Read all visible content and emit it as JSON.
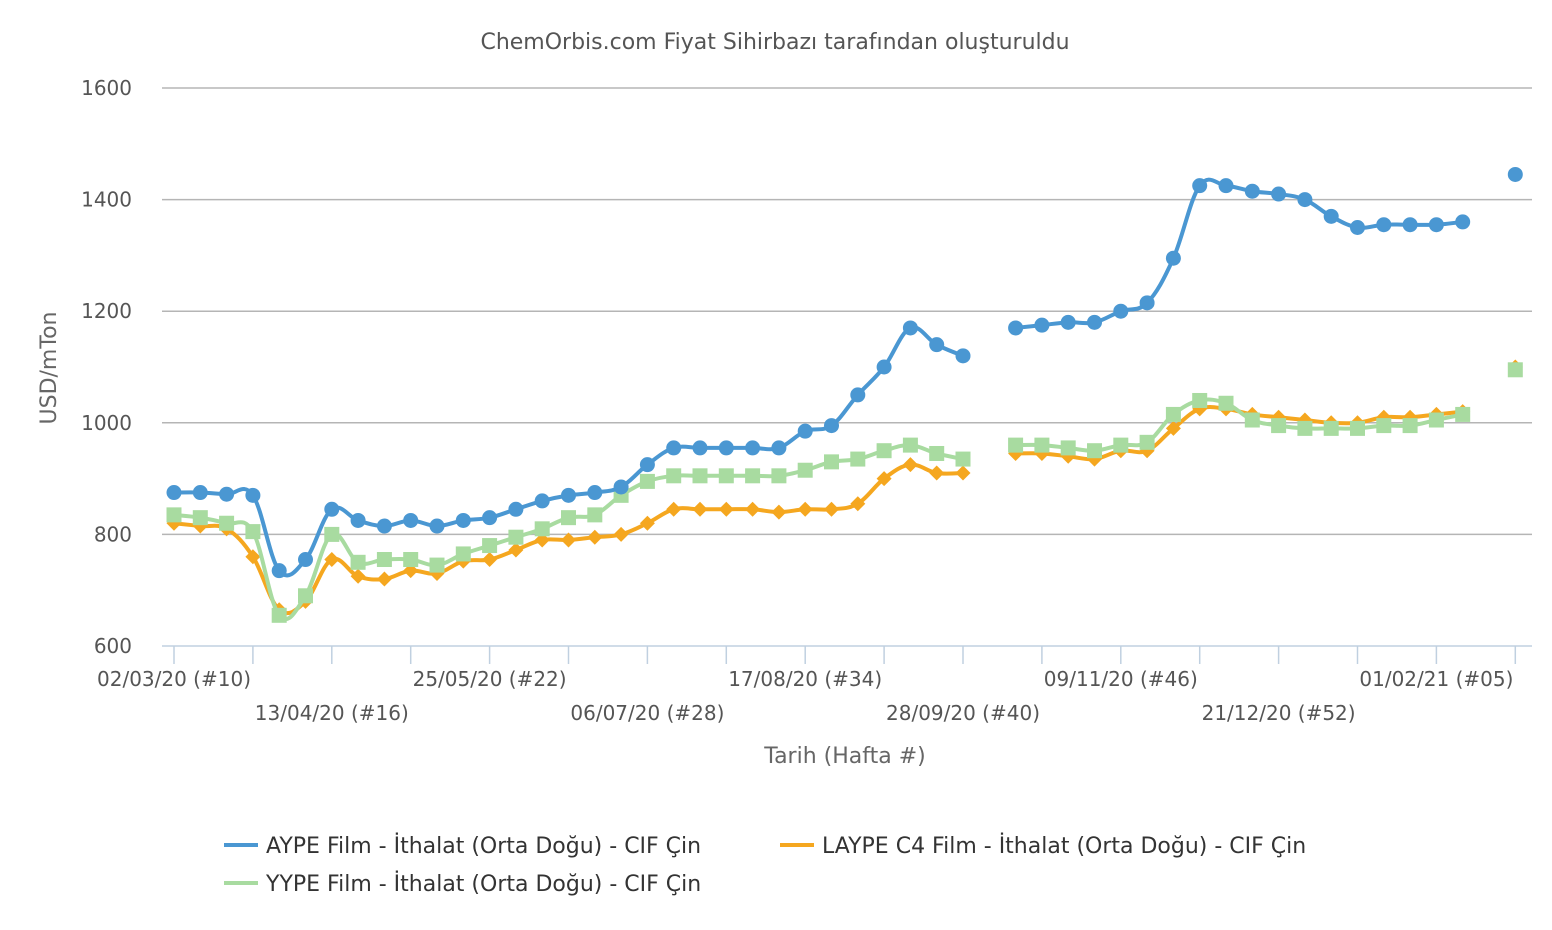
{
  "chart_data": {
    "type": "line",
    "title": "ChemOrbis.com Fiyat Sihirbazı tarafından oluşturuldu",
    "xlabel": "Tarih (Hafta #)",
    "ylabel": "USD/mTon",
    "ylim": [
      600,
      1600
    ],
    "yticks": [
      "600",
      "800",
      "1000",
      "1200",
      "1400",
      "1600"
    ],
    "grid": true,
    "legend_position": "bottom",
    "x_tick_labels": [
      {
        "label": "02/03/20 (#10)",
        "week": 0,
        "row": 0
      },
      {
        "label": "13/04/20 (#16)",
        "week": 6,
        "row": 1
      },
      {
        "label": "25/05/20 (#22)",
        "week": 12,
        "row": 0
      },
      {
        "label": "06/07/20 (#28)",
        "week": 18,
        "row": 1
      },
      {
        "label": "17/08/20 (#34)",
        "week": 24,
        "row": 0
      },
      {
        "label": "28/09/20 (#40)",
        "week": 30,
        "row": 1
      },
      {
        "label": "09/11/20 (#46)",
        "week": 36,
        "row": 0
      },
      {
        "label": "21/12/20 (#52)",
        "week": 42,
        "row": 1
      },
      {
        "label": "01/02/21 (#05)",
        "week": 48,
        "row": 0
      }
    ],
    "weeks": 52,
    "series": [
      {
        "name": "AYPE Film - İthalat (Orta Doğu) - CIF Çin",
        "color": "#4a97d2",
        "marker": "circle",
        "values": [
          875,
          875,
          872,
          870,
          735,
          755,
          845,
          825,
          815,
          825,
          815,
          825,
          830,
          845,
          860,
          870,
          875,
          885,
          925,
          955,
          955,
          955,
          955,
          955,
          985,
          995,
          1050,
          1100,
          1170,
          1140,
          1120,
          null,
          1170,
          1175,
          1180,
          1180,
          1200,
          1215,
          1295,
          1425,
          1425,
          1415,
          1410,
          1400,
          1370,
          1350,
          1355,
          1355,
          1355,
          1360,
          null,
          1445
        ]
      },
      {
        "name": "LAYPE C4 Film - İthalat (Orta Doğu) - CIF Çin",
        "color": "#f5a71f",
        "marker": "diamond",
        "values": [
          820,
          815,
          810,
          760,
          665,
          680,
          755,
          725,
          720,
          735,
          730,
          752,
          755,
          772,
          790,
          790,
          795,
          800,
          820,
          845,
          845,
          845,
          845,
          840,
          845,
          845,
          855,
          900,
          925,
          910,
          910,
          null,
          945,
          945,
          940,
          935,
          950,
          950,
          990,
          1025,
          1025,
          1015,
          1010,
          1005,
          1000,
          1000,
          1010,
          1010,
          1015,
          1020,
          null,
          1100
        ]
      },
      {
        "name": "YYPE Film - İthalat (Orta Doğu) - CIF Çin",
        "color": "#a8dba0",
        "marker": "square",
        "values": [
          835,
          830,
          820,
          805,
          655,
          690,
          800,
          750,
          755,
          755,
          745,
          765,
          780,
          795,
          810,
          830,
          835,
          870,
          895,
          905,
          905,
          905,
          905,
          905,
          915,
          930,
          935,
          950,
          960,
          945,
          935,
          null,
          960,
          960,
          955,
          950,
          960,
          965,
          1015,
          1040,
          1035,
          1005,
          995,
          990,
          990,
          990,
          995,
          995,
          1005,
          1015,
          null,
          1095
        ]
      }
    ]
  }
}
